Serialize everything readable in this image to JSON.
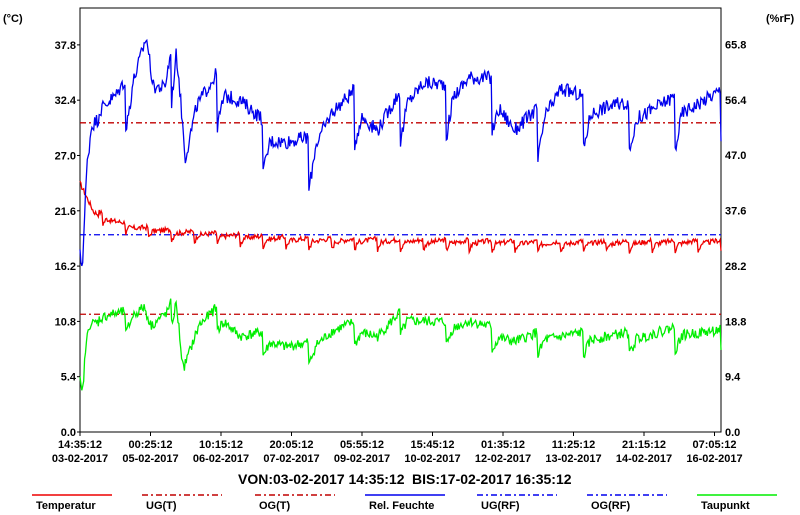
{
  "chart_data": {
    "type": "line",
    "left_axis": {
      "unit": "(°C)",
      "ticks": [
        "37.8",
        "32.4",
        "27.0",
        "21.6",
        "16.2",
        "10.8",
        "5.4",
        "0.0"
      ],
      "ylim": [
        0,
        41.4
      ]
    },
    "right_axis": {
      "unit": "(%rF)",
      "ticks": [
        "65.8",
        "56.4",
        "47.0",
        "37.6",
        "28.2",
        "18.8",
        "9.4",
        "0.0"
      ],
      "ylim": [
        0,
        72
      ]
    },
    "x_ticks": [
      {
        "time": "14:35:12",
        "date": "03-02-2017"
      },
      {
        "time": "00:25:12",
        "date": "05-02-2017"
      },
      {
        "time": "10:15:12",
        "date": "06-02-2017"
      },
      {
        "time": "20:05:12",
        "date": "07-02-2017"
      },
      {
        "time": "05:55:12",
        "date": "09-02-2017"
      },
      {
        "time": "15:45:12",
        "date": "10-02-2017"
      },
      {
        "time": "01:35:12",
        "date": "12-02-2017"
      },
      {
        "time": "11:25:12",
        "date": "13-02-2017"
      },
      {
        "time": "21:15:12",
        "date": "14-02-2017"
      },
      {
        "time": "07:05:12",
        "date": "16-02-2017"
      }
    ],
    "range_text": {
      "from": "VON:03-02-2017 14:35:12",
      "to": "BIS:17-02-2017 16:35:12"
    },
    "thresholds": [
      {
        "name": "UG(RF)",
        "value": 33.5,
        "axis": "right",
        "color": "#0000ee"
      },
      {
        "name": "OG(RF)",
        "value": 52.5,
        "axis": "right",
        "color": "#c00000"
      },
      {
        "name": "OG(T)",
        "value": 11.5,
        "axis": "left",
        "color": "#c00000"
      }
    ],
    "series": [
      {
        "name": "Temperatur",
        "axis": "left",
        "color": "#ee0000",
        "anchors": [
          [
            0,
            24.3
          ],
          [
            0.3,
            21.5
          ],
          [
            0.7,
            20.5
          ],
          [
            1.2,
            19.8
          ],
          [
            2,
            19.4
          ],
          [
            3,
            19.1
          ],
          [
            4,
            18.8
          ],
          [
            5,
            18.6
          ],
          [
            7,
            18.5
          ],
          [
            10,
            18.3
          ],
          [
            14,
            18.4
          ]
        ],
        "wave": {
          "amp": 0.7,
          "period": 0.5,
          "jitter": 0.25
        }
      },
      {
        "name": "Rel. Feuchte",
        "axis": "right",
        "color": "#0000ee",
        "anchors": [
          [
            0,
            30
          ],
          [
            0.05,
            28
          ],
          [
            0.15,
            45
          ],
          [
            0.25,
            52
          ],
          [
            0.5,
            54
          ],
          [
            0.8,
            55
          ],
          [
            1.1,
            58
          ],
          [
            1.45,
            66
          ],
          [
            1.6,
            57
          ],
          [
            1.85,
            56
          ],
          [
            2.1,
            66
          ],
          [
            2.3,
            46
          ],
          [
            2.55,
            54
          ],
          [
            3,
            58
          ],
          [
            3.5,
            55
          ],
          [
            4,
            50
          ],
          [
            4.5,
            48
          ],
          [
            5,
            47
          ],
          [
            5.5,
            53
          ],
          [
            6,
            55
          ],
          [
            6.5,
            50
          ],
          [
            7,
            55
          ],
          [
            7.5,
            58
          ],
          [
            8,
            56
          ],
          [
            8.5,
            59
          ],
          [
            9,
            57
          ],
          [
            9.5,
            50
          ],
          [
            10,
            52
          ],
          [
            10.5,
            57
          ],
          [
            11,
            54
          ],
          [
            11.5,
            54
          ],
          [
            12,
            53
          ],
          [
            13,
            54
          ],
          [
            14,
            55
          ]
        ],
        "wave": {
          "amp": 6,
          "period": 1.0,
          "jitter": 1.2
        }
      },
      {
        "name": "Taupunkt",
        "axis": "left",
        "color": "#00ee00",
        "anchors": [
          [
            0,
            5
          ],
          [
            0.05,
            3.5
          ],
          [
            0.12,
            8
          ],
          [
            0.2,
            10.5
          ],
          [
            0.6,
            11
          ],
          [
            1,
            11
          ],
          [
            1.4,
            12
          ],
          [
            1.55,
            10
          ],
          [
            1.9,
            11
          ],
          [
            2.1,
            13
          ],
          [
            2.25,
            6
          ],
          [
            2.6,
            10
          ],
          [
            3.0,
            11.5
          ],
          [
            3.5,
            9
          ],
          [
            4,
            9
          ],
          [
            4.5,
            8
          ],
          [
            5,
            8
          ],
          [
            5.5,
            9.5
          ],
          [
            6,
            10
          ],
          [
            6.5,
            9
          ],
          [
            7,
            11
          ],
          [
            7.5,
            10.5
          ],
          [
            8,
            10
          ],
          [
            8.5,
            10.5
          ],
          [
            9,
            9.5
          ],
          [
            9.5,
            8.5
          ],
          [
            10,
            9
          ],
          [
            11,
            9
          ],
          [
            12,
            9
          ],
          [
            13,
            9.5
          ],
          [
            14,
            9.2
          ]
        ],
        "wave": {
          "amp": 1.5,
          "period": 1.0,
          "jitter": 0.5
        }
      }
    ],
    "legend": [
      {
        "name": "Temperatur",
        "color": "#ee0000",
        "dash": false
      },
      {
        "name": "UG(T)",
        "color": "#c00000",
        "dash": true
      },
      {
        "name": "OG(T)",
        "color": "#c00000",
        "dash": true
      },
      {
        "name": "Rel. Feuchte",
        "color": "#0000ee",
        "dash": false
      },
      {
        "name": "UG(RF)",
        "color": "#0000ee",
        "dash": true
      },
      {
        "name": "OG(RF)",
        "color": "#0000ee",
        "dash": true
      },
      {
        "name": "Taupunkt",
        "color": "#00ee00",
        "dash": false
      }
    ],
    "grid": false,
    "legend_position": "bottom"
  }
}
